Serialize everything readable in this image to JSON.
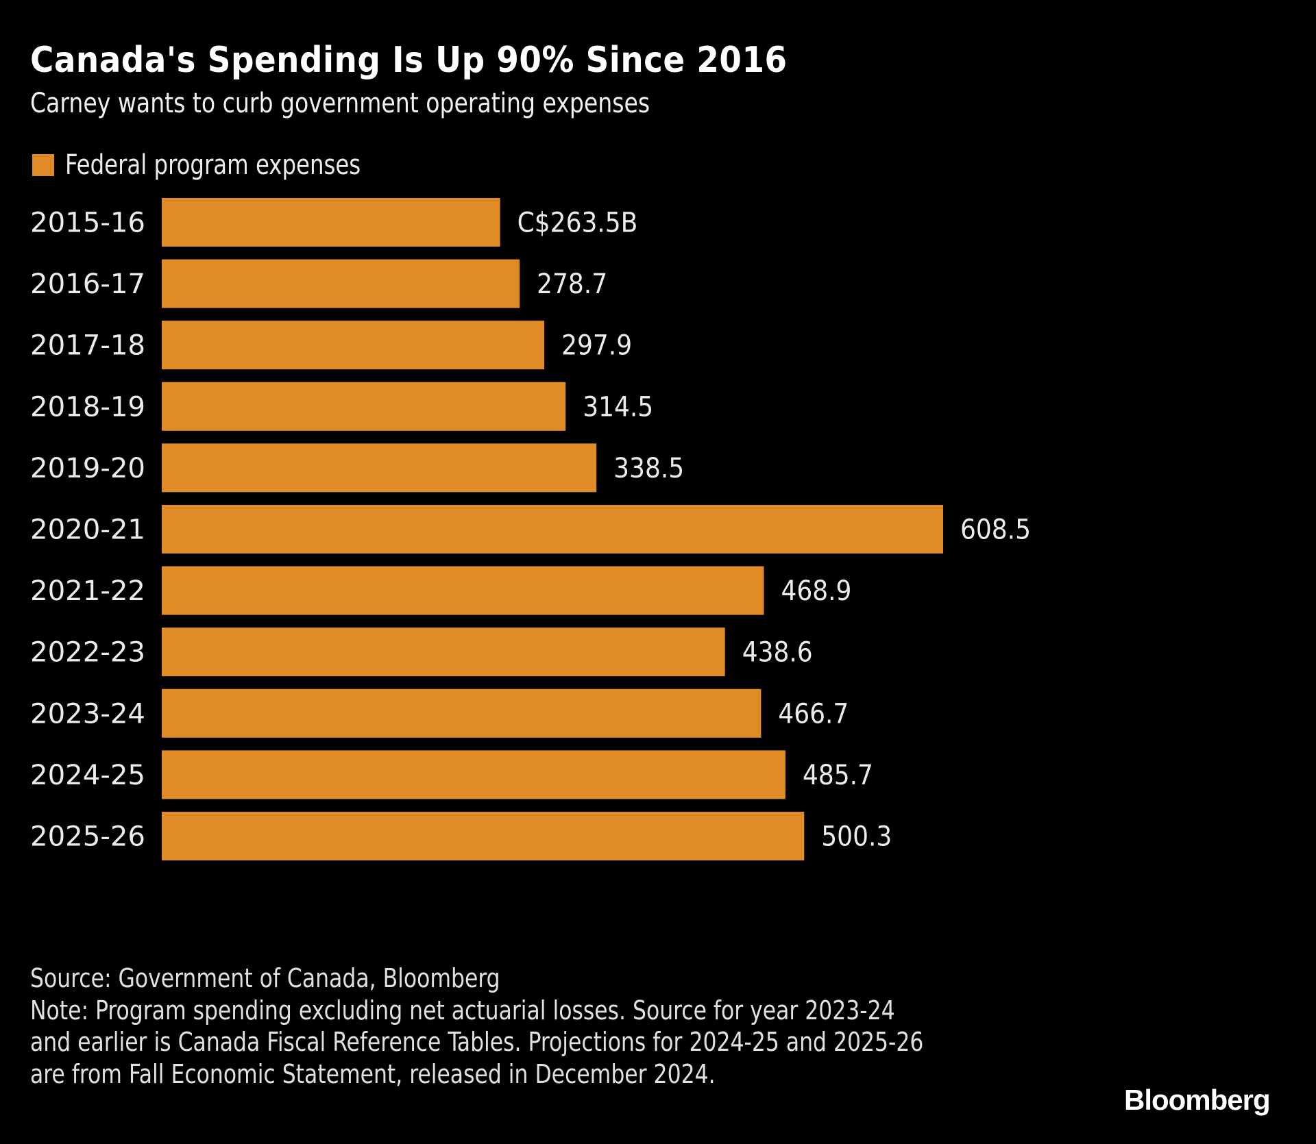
{
  "chart_data": {
    "type": "bar",
    "orientation": "horizontal",
    "title": "Canada's Spending Is Up 90% Since 2016",
    "subtitle": "Carney wants to curb government operating expenses",
    "categories": [
      "2015-16",
      "2016-17",
      "2017-18",
      "2018-19",
      "2019-20",
      "2020-21",
      "2021-22",
      "2022-23",
      "2023-24",
      "2024-25",
      "2025-26"
    ],
    "series": [
      {
        "name": "Federal program expenses",
        "values": [
          263.5,
          278.7,
          297.9,
          314.5,
          338.5,
          608.5,
          468.9,
          438.6,
          466.7,
          485.7,
          500.3
        ],
        "color": "#E08B25"
      }
    ],
    "data_labels": [
      "C$263.5B",
      "278.7",
      "297.9",
      "314.5",
      "338.5",
      "608.5",
      "468.9",
      "438.6",
      "466.7",
      "485.7",
      "500.3"
    ],
    "xlabel": "",
    "ylabel": "",
    "xlim": [
      0,
      608.5
    ],
    "grid": false,
    "legend_position": "top-left"
  },
  "footer": {
    "source": "Source: Government of Canada, Bloomberg",
    "note": "Note: Program spending excluding net actuarial losses. Source for year 2023-24 and earlier is Canada Fiscal Reference Tables. Projections for 2024-25 and 2025-26 are from Fall Economic Statement, released in December 2024."
  },
  "logo": "Bloomberg",
  "colors": {
    "background": "#000000",
    "bar": "#E08B25",
    "text": "#ECECEC"
  }
}
